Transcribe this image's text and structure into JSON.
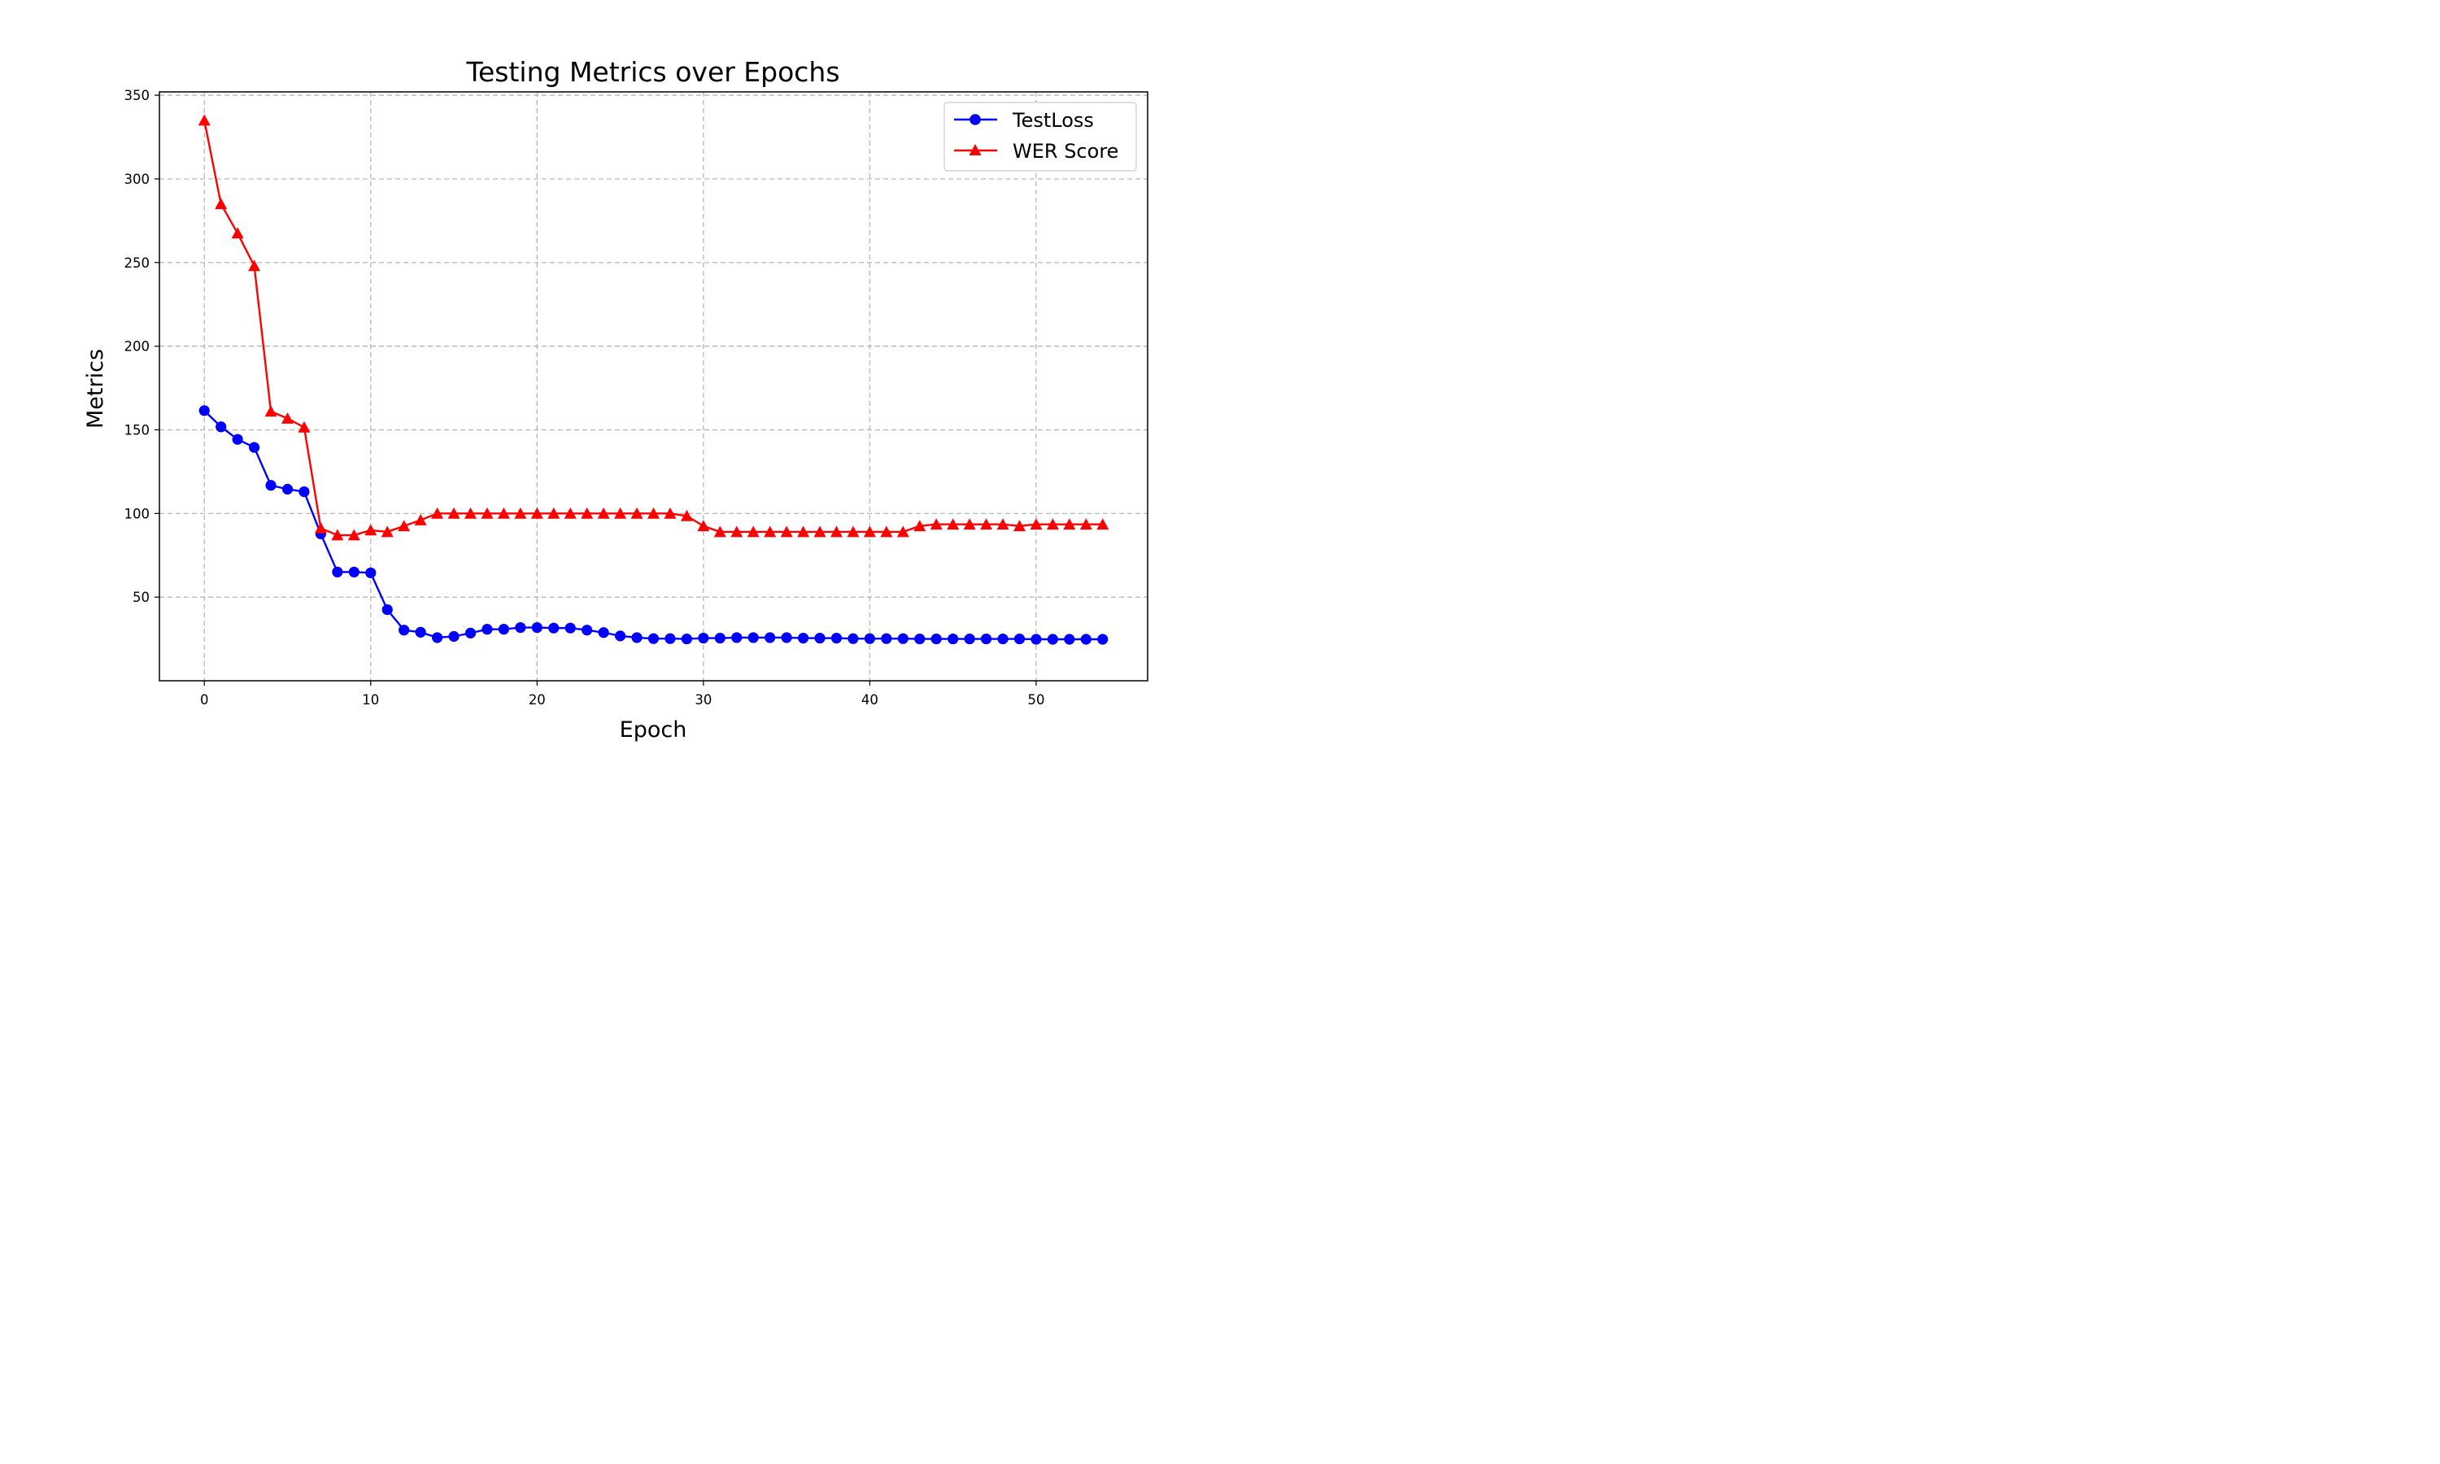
{
  "chart_data": {
    "type": "line",
    "title": "Testing Metrics over Epochs",
    "xlabel": "Epoch",
    "ylabel": "Metrics",
    "xlim": [
      -2.7,
      56.7
    ],
    "ylim": [
      0,
      352
    ],
    "xticks": [
      0,
      10,
      20,
      30,
      40,
      50
    ],
    "yticks": [
      50,
      100,
      150,
      200,
      250,
      300,
      350
    ],
    "grid": true,
    "legend": "top-right",
    "series": [
      {
        "name": "TestLoss",
        "color": "#0000ff",
        "marker": "circle",
        "values": [
          161.5,
          151.8,
          144.3,
          139.5,
          116.8,
          114.5,
          113.0,
          87.8,
          65.0,
          65.0,
          64.5,
          42.5,
          30.3,
          29.0,
          25.8,
          26.5,
          28.5,
          30.8,
          30.8,
          31.8,
          31.8,
          31.5,
          31.5,
          30.3,
          28.8,
          26.8,
          25.8,
          25.2,
          25.2,
          25.0,
          25.5,
          25.5,
          25.8,
          25.8,
          25.8,
          25.8,
          25.5,
          25.5,
          25.5,
          25.2,
          25.2,
          25.2,
          25.2,
          25.0,
          25.0,
          25.0,
          25.0,
          25.0,
          25.0,
          25.0,
          24.8,
          24.8,
          24.8,
          24.8,
          24.8
        ]
      },
      {
        "name": "WER Score",
        "color": "#ff0000",
        "marker": "triangle",
        "values": [
          335.0,
          285.0,
          267.5,
          248.0,
          161.0,
          156.8,
          151.5,
          91.2,
          87.0,
          87.0,
          90.0,
          89.0,
          92.5,
          96.0,
          100.0,
          100.0,
          100.0,
          100.0,
          100.0,
          100.0,
          100.0,
          100.0,
          100.0,
          100.0,
          100.0,
          100.0,
          100.0,
          100.0,
          100.0,
          98.5,
          92.5,
          89.0,
          89.0,
          89.0,
          89.0,
          89.0,
          89.0,
          89.0,
          89.0,
          89.0,
          89.0,
          89.0,
          89.0,
          92.5,
          93.5,
          93.5,
          93.5,
          93.5,
          93.5,
          92.5,
          93.5,
          93.5,
          93.5,
          93.5,
          93.5
        ]
      }
    ]
  }
}
